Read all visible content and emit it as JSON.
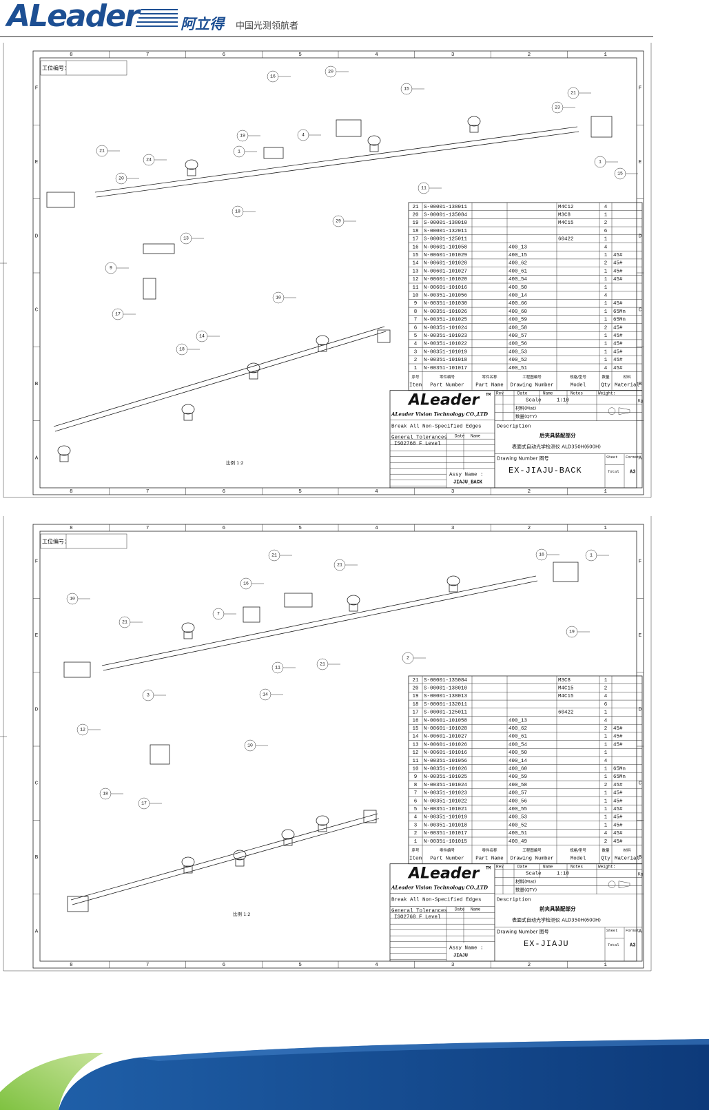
{
  "header": {
    "brand": "ALeader",
    "brand_cn": "阿立得",
    "slogan": "中国光测领航者"
  },
  "sheets": [
    {
      "work_no_label": "工位编号：",
      "zone_columns": [
        "8",
        "7",
        "6",
        "5",
        "4",
        "3",
        "2",
        "1"
      ],
      "zone_rows": [
        "F",
        "E",
        "D",
        "C",
        "B",
        "A"
      ],
      "scale_note": "比例 1:2",
      "balloons": [
        "16",
        "20",
        "15",
        "21",
        "23",
        "19",
        "1",
        "21",
        "24",
        "20",
        "11",
        "29",
        "18",
        "13",
        "9",
        "17",
        "14",
        "18",
        "10",
        "15",
        "1",
        "4"
      ],
      "bom": {
        "columns": [
          {
            "cn": "序号",
            "en": "Item"
          },
          {
            "cn": "零件编号",
            "en": "Part Number"
          },
          {
            "cn": "零件名称",
            "en": "Part Name"
          },
          {
            "cn": "工程图编号",
            "en": "Drawing Number"
          },
          {
            "cn": "规格/型号",
            "en": "Model"
          },
          {
            "cn": "数量",
            "en": "Qty"
          },
          {
            "cn": "材料",
            "en": "Material"
          }
        ],
        "rows": [
          {
            "item": "21",
            "part_number": "S-00001-138011",
            "model": "M4C12",
            "qty": "4"
          },
          {
            "item": "20",
            "part_number": "S-00001-135084",
            "model": "M3C8",
            "qty": "1"
          },
          {
            "item": "19",
            "part_number": "S-00001-138010",
            "model": "M4C15",
            "qty": "2"
          },
          {
            "item": "18",
            "part_number": "S-00001-132011",
            "qty": "6"
          },
          {
            "item": "17",
            "part_number": "S-00001-125011",
            "model": "60422",
            "qty": "1"
          },
          {
            "item": "16",
            "part_number": "N-00601-101058",
            "drawing_number": "400_13",
            "qty": "4"
          },
          {
            "item": "15",
            "part_number": "N-00601-101029",
            "drawing_number": "400_15",
            "qty": "1",
            "material": "45#"
          },
          {
            "item": "14",
            "part_number": "N-00601-101028",
            "drawing_number": "400_62",
            "qty": "2",
            "material": "45#"
          },
          {
            "item": "13",
            "part_number": "N-00601-101027",
            "drawing_number": "400_61",
            "qty": "1",
            "material": "45#"
          },
          {
            "item": "12",
            "part_number": "N-00601-101020",
            "drawing_number": "400_54",
            "qty": "1",
            "material": "45#"
          },
          {
            "item": "11",
            "part_number": "N-00601-101016",
            "drawing_number": "400_50",
            "qty": "1"
          },
          {
            "item": "10",
            "part_number": "N-00351-101056",
            "drawing_number": "400_14",
            "qty": "4"
          },
          {
            "item": "9",
            "part_number": "N-00351-101030",
            "drawing_number": "400_66",
            "qty": "1",
            "material": "45#"
          },
          {
            "item": "8",
            "part_number": "N-00351-101026",
            "drawing_number": "400_60",
            "qty": "1",
            "material": "65Mn"
          },
          {
            "item": "7",
            "part_number": "N-00351-101025",
            "drawing_number": "400_59",
            "qty": "1",
            "material": "65Mn"
          },
          {
            "item": "6",
            "part_number": "N-00351-101024",
            "drawing_number": "400_58",
            "qty": "2",
            "material": "45#"
          },
          {
            "item": "5",
            "part_number": "N-00351-101023",
            "drawing_number": "400_57",
            "qty": "1",
            "material": "45#"
          },
          {
            "item": "4",
            "part_number": "N-00351-101022",
            "drawing_number": "400_56",
            "qty": "1",
            "material": "45#"
          },
          {
            "item": "3",
            "part_number": "N-00351-101019",
            "drawing_number": "400_53",
            "qty": "1",
            "material": "45#"
          },
          {
            "item": "2",
            "part_number": "N-00351-101018",
            "drawing_number": "400_52",
            "qty": "1",
            "material": "45#"
          },
          {
            "item": "1",
            "part_number": "N-00351-101017",
            "drawing_number": "400_51",
            "qty": "4",
            "material": "45#"
          }
        ]
      },
      "title_block": {
        "company": "ALeader",
        "tm": "TM",
        "company_full": "ALeader Vision Technology CO.,LTD",
        "edges": "Break All Non-Specified Edges",
        "tolerances": "General Tolerances",
        "iso": "ISO2768 F Level",
        "rev": "Rev",
        "date": "Date",
        "name": "Name",
        "notes": "Notes",
        "weight": "Weight:",
        "kg": "Kg",
        "scale_label": "Scale",
        "scale": "1:10",
        "material": "材料(Mat)",
        "qty": "数量(QTY)",
        "description_label": "Description",
        "description": "后夹具装配部分",
        "product": "表面式自动光学检测仪 ALD350H(600H)",
        "drawing_number_label": "Drawing Number 图号",
        "drawing_number": "EX-JIAJU-BACK",
        "assy_label": "Assy Name :",
        "assy": "JIAJU_BACK",
        "sheet_label": "Sheet",
        "total_label": "Total",
        "format_label": "Format",
        "format": "A3"
      }
    },
    {
      "work_no_label": "工位编号：",
      "zone_columns": [
        "8",
        "7",
        "6",
        "5",
        "4",
        "3",
        "2",
        "1"
      ],
      "zone_rows": [
        "F",
        "E",
        "D",
        "C",
        "B",
        "A"
      ],
      "scale_note": "比例 1:2",
      "balloons": [
        "21",
        "21",
        "1",
        "16",
        "16",
        "7",
        "10",
        "21",
        "2",
        "21",
        "11",
        "19",
        "3",
        "14",
        "10",
        "18",
        "17",
        "12"
      ],
      "bom": {
        "columns": [
          {
            "cn": "序号",
            "en": "Item"
          },
          {
            "cn": "零件编号",
            "en": "Part Number"
          },
          {
            "cn": "零件名称",
            "en": "Part Name"
          },
          {
            "cn": "工程图编号",
            "en": "Drawing Number"
          },
          {
            "cn": "规格/型号",
            "en": "Model"
          },
          {
            "cn": "数量",
            "en": "Qty"
          },
          {
            "cn": "材料",
            "en": "Material"
          }
        ],
        "rows": [
          {
            "item": "21",
            "part_number": "S-00001-135084",
            "model": "M3C8",
            "qty": "1"
          },
          {
            "item": "20",
            "part_number": "S-00001-138010",
            "model": "M4C15",
            "qty": "2"
          },
          {
            "item": "19",
            "part_number": "S-00001-138013",
            "model": "M4C15",
            "qty": "4"
          },
          {
            "item": "18",
            "part_number": "S-00001-132011",
            "qty": "6"
          },
          {
            "item": "17",
            "part_number": "S-00001-125011",
            "model": "60422",
            "qty": "1"
          },
          {
            "item": "16",
            "part_number": "N-00601-101058",
            "drawing_number": "400_13",
            "qty": "4"
          },
          {
            "item": "15",
            "part_number": "N-00601-101028",
            "drawing_number": "400_62",
            "qty": "2",
            "material": "45#"
          },
          {
            "item": "14",
            "part_number": "N-00601-101027",
            "drawing_number": "400_61",
            "qty": "1",
            "material": "45#"
          },
          {
            "item": "13",
            "part_number": "N-00601-101026",
            "drawing_number": "400_54",
            "qty": "1",
            "material": "45#"
          },
          {
            "item": "12",
            "part_number": "N-00601-101016",
            "drawing_number": "400_50",
            "qty": "1"
          },
          {
            "item": "11",
            "part_number": "N-00351-101056",
            "drawing_number": "400_14",
            "qty": "4"
          },
          {
            "item": "10",
            "part_number": "N-00351-101026",
            "drawing_number": "400_60",
            "qty": "1",
            "material": "65Mn"
          },
          {
            "item": "9",
            "part_number": "N-00351-101025",
            "drawing_number": "400_59",
            "qty": "1",
            "material": "65Mn"
          },
          {
            "item": "8",
            "part_number": "N-00351-101024",
            "drawing_number": "400_58",
            "qty": "2",
            "material": "45#"
          },
          {
            "item": "7",
            "part_number": "N-00351-101023",
            "drawing_number": "400_57",
            "qty": "1",
            "material": "45#"
          },
          {
            "item": "6",
            "part_number": "N-00351-101022",
            "drawing_number": "400_56",
            "qty": "1",
            "material": "45#"
          },
          {
            "item": "5",
            "part_number": "N-00351-101021",
            "drawing_number": "400_55",
            "qty": "1",
            "material": "45#"
          },
          {
            "item": "4",
            "part_number": "N-00351-101019",
            "drawing_number": "400_53",
            "qty": "1",
            "material": "45#"
          },
          {
            "item": "3",
            "part_number": "N-00351-101018",
            "drawing_number": "400_52",
            "qty": "1",
            "material": "45#"
          },
          {
            "item": "2",
            "part_number": "N-00351-101017",
            "drawing_number": "400_51",
            "qty": "4",
            "material": "45#"
          },
          {
            "item": "1",
            "part_number": "N-00351-101015",
            "drawing_number": "400_49",
            "qty": "2",
            "material": "45#"
          }
        ]
      },
      "title_block": {
        "company": "ALeader",
        "tm": "TM",
        "company_full": "ALeader Vision Technology CO.,LTD",
        "edges": "Break All Non-Specified Edges",
        "tolerances": "General Tolerances",
        "iso": "ISO2768 F Level",
        "rev": "Rev",
        "date": "Date",
        "name": "Name",
        "notes": "Notes",
        "weight": "Weight:",
        "kg": "Kg",
        "scale_label": "Scale",
        "scale": "1:10",
        "material": "材料(Mat)",
        "qty": "数量(QTY)",
        "description_label": "Description",
        "description": "前夹具装配部分",
        "product": "表面式自动光学检测仪 ALD350H(600H)",
        "drawing_number_label": "Drawing Number 图号",
        "drawing_number": "EX-JIAJU",
        "assy_label": "Assy Name :",
        "assy": "JIAJU",
        "sheet_label": "Sheet",
        "total_label": "Total",
        "format_label": "Format",
        "format": "A3"
      }
    }
  ]
}
